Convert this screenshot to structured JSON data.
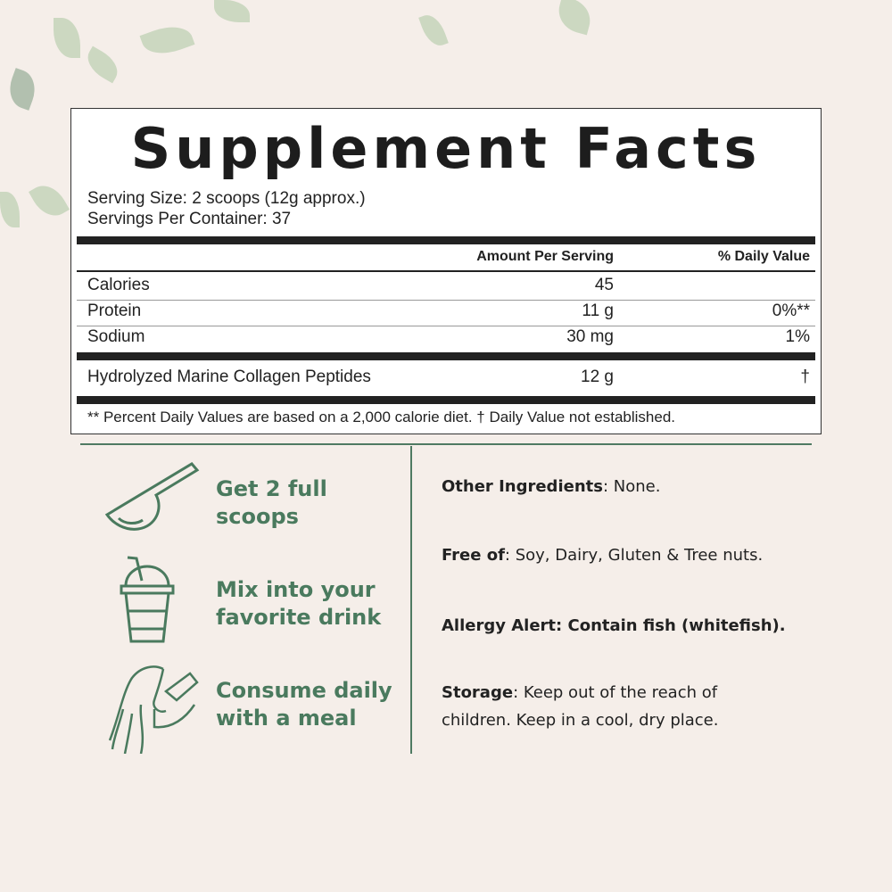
{
  "panel": {
    "title": "Supplement Facts",
    "serving_size": "Serving Size: 2 scoops (12g approx.)",
    "servings_per_container": "Servings Per Container: 37",
    "header": {
      "amount": "Amount Per Serving",
      "dv": "% Daily Value"
    },
    "rows": [
      {
        "name": "Calories",
        "amount": "45",
        "dv": ""
      },
      {
        "name": "Protein",
        "amount": "11 g",
        "dv": "0%**"
      },
      {
        "name": "Sodium",
        "amount": "30 mg",
        "dv": "1%"
      },
      {
        "name": "Hydrolyzed Marine Collagen Peptides",
        "amount": "12 g",
        "dv": "†"
      }
    ],
    "footnote": "** Percent Daily Values are based on a 2,000 calorie diet. † Daily Value not established."
  },
  "steps": [
    {
      "icon": "scoop-icon",
      "line1": "Get 2 full",
      "line2": "scoops"
    },
    {
      "icon": "drink-cup-icon",
      "line1": "Mix into your",
      "line2": "favorite drink"
    },
    {
      "icon": "woman-drinking-icon",
      "line1": "Consume daily",
      "line2": "with a meal"
    }
  ],
  "info": {
    "other_label": "Other Ingredients",
    "other_text": ": None.",
    "free_label": "Free of",
    "free_text": ": Soy, Dairy, Gluten & Tree nuts.",
    "allergy": "Allergy Alert: Contain fish (whitefish).",
    "storage_label": "Storage",
    "storage_text": ": Keep out of the reach of children. Keep in a cool, dry place."
  },
  "colors": {
    "accent": "#4a7a5e",
    "background": "#f5eee9"
  }
}
